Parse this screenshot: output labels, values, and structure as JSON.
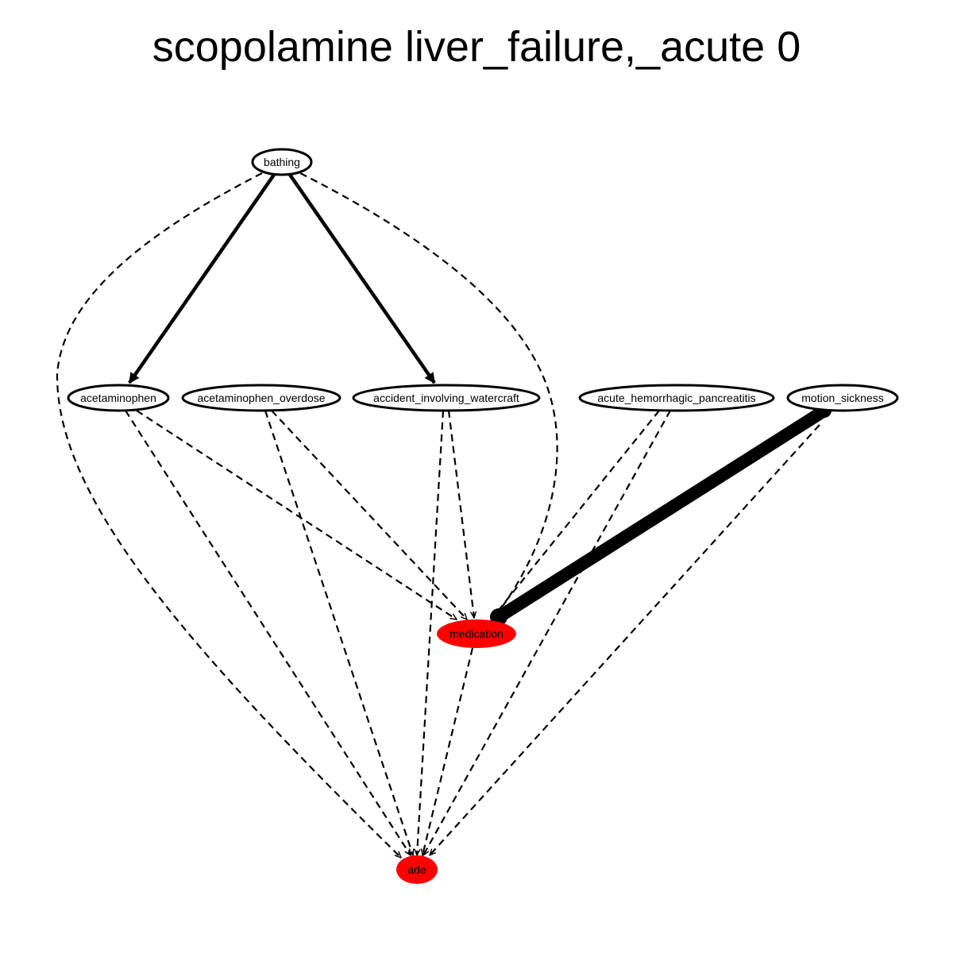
{
  "title": "scopolamine liver_failure,_acute 0",
  "colors": {
    "edge": "#000000",
    "highlight_fill": "#ff0000",
    "node_fill": "#ffffff",
    "node_stroke": "#000000"
  },
  "nodes": [
    {
      "id": "bathing",
      "label": "bathing",
      "highlight": false
    },
    {
      "id": "acetaminophen",
      "label": "acetaminophen",
      "highlight": false
    },
    {
      "id": "acetaminophen_overdose",
      "label": "acetaminophen_overdose",
      "highlight": false
    },
    {
      "id": "accident_involving_watercraft",
      "label": "accident_involving_watercraft",
      "highlight": false
    },
    {
      "id": "acute_hemorrhagic_pancreatitis",
      "label": "acute_hemorrhagic_pancreatitis",
      "highlight": false
    },
    {
      "id": "motion_sickness",
      "label": "motion_sickness",
      "highlight": false
    },
    {
      "id": "medication",
      "label": "medication",
      "highlight": true
    },
    {
      "id": "ade",
      "label": "ade",
      "highlight": true
    }
  ],
  "edges": [
    {
      "from": "bathing",
      "to": "acetaminophen",
      "style": "solid",
      "weight": "medium"
    },
    {
      "from": "bathing",
      "to": "accident_involving_watercraft",
      "style": "solid",
      "weight": "medium"
    },
    {
      "from": "bathing",
      "to": "ade",
      "style": "dashed",
      "weight": "thin"
    },
    {
      "from": "bathing",
      "to": "medication",
      "style": "dashed",
      "weight": "thin"
    },
    {
      "from": "acetaminophen",
      "to": "medication",
      "style": "dashed",
      "weight": "thin"
    },
    {
      "from": "acetaminophen",
      "to": "ade",
      "style": "dashed",
      "weight": "thin"
    },
    {
      "from": "acetaminophen_overdose",
      "to": "medication",
      "style": "dashed",
      "weight": "thin"
    },
    {
      "from": "acetaminophen_overdose",
      "to": "ade",
      "style": "dashed",
      "weight": "thin"
    },
    {
      "from": "accident_involving_watercraft",
      "to": "medication",
      "style": "dashed",
      "weight": "thin"
    },
    {
      "from": "accident_involving_watercraft",
      "to": "ade",
      "style": "dashed",
      "weight": "thin"
    },
    {
      "from": "acute_hemorrhagic_pancreatitis",
      "to": "medication",
      "style": "dashed",
      "weight": "thin"
    },
    {
      "from": "acute_hemorrhagic_pancreatitis",
      "to": "ade",
      "style": "dashed",
      "weight": "thin"
    },
    {
      "from": "motion_sickness",
      "to": "medication",
      "style": "solid",
      "weight": "heavy"
    },
    {
      "from": "motion_sickness",
      "to": "ade",
      "style": "dashed",
      "weight": "thin"
    },
    {
      "from": "medication",
      "to": "ade",
      "style": "dashed",
      "weight": "thin"
    }
  ]
}
